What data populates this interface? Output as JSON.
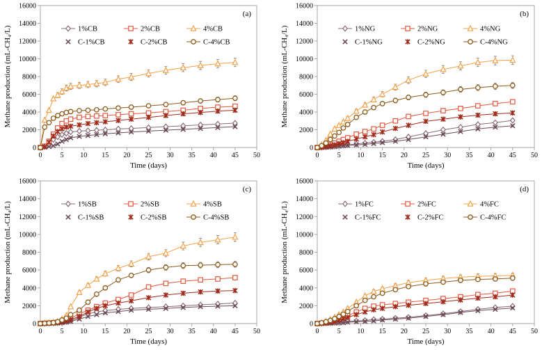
{
  "figure": {
    "x_ticks": [
      "0",
      "5",
      "10",
      "15",
      "20",
      "25",
      "30",
      "35",
      "40",
      "45",
      "50"
    ],
    "y_ticks": [
      "0",
      "2000",
      "4000",
      "6000",
      "8000",
      "10000",
      "12000",
      "14000",
      "16000"
    ]
  },
  "colors": {
    "c1": "#8a6a78",
    "c2": "#e4553a",
    "c4": "#f4a048",
    "cc1": "#6b4a55",
    "cc2": "#a0291a",
    "cc4": "#8a5a1a",
    "frame": "#a6a6a6"
  },
  "series_styles": [
    {
      "marker": "diamond-open",
      "color": "c1"
    },
    {
      "marker": "square-open",
      "color": "c2"
    },
    {
      "marker": "triangle-open",
      "color": "c4"
    },
    {
      "marker": "x",
      "color": "cc1"
    },
    {
      "marker": "star",
      "color": "cc2"
    },
    {
      "marker": "circle-open",
      "color": "cc4"
    }
  ],
  "chart_data": [
    {
      "type": "line",
      "panel_label": "(a)",
      "xlabel": "Time (days)",
      "ylabel": "Methane production (mL-CH₄/L)",
      "xlim": [
        0,
        50
      ],
      "ylim": [
        0,
        16000
      ],
      "legend": "top",
      "x": [
        0,
        1,
        2,
        3,
        4,
        5,
        6,
        7,
        9,
        11,
        13,
        15,
        18,
        21,
        25,
        29,
        33,
        37,
        41,
        45
      ],
      "series": [
        {
          "name": "1%CB",
          "values": [
            0,
            100,
            400,
            900,
            1200,
            1450,
            1600,
            1750,
            1850,
            1900,
            1950,
            2000,
            2100,
            2150,
            2250,
            2350,
            2450,
            2550,
            2650,
            2750
          ]
        },
        {
          "name": "2%CB",
          "values": [
            0,
            150,
            700,
            1500,
            2200,
            2700,
            3000,
            3200,
            3400,
            3500,
            3550,
            3600,
            3700,
            3800,
            3900,
            4050,
            4200,
            4400,
            4550,
            4650
          ]
        },
        {
          "name": "4%CB",
          "values": [
            0,
            3100,
            4200,
            5500,
            5900,
            6300,
            6700,
            6900,
            7000,
            7100,
            7200,
            7350,
            7700,
            7950,
            8350,
            8700,
            9000,
            9250,
            9450,
            9600
          ]
        },
        {
          "name": "C-1%CB",
          "values": [
            0,
            50,
            100,
            200,
            400,
            700,
            900,
            1100,
            1250,
            1350,
            1450,
            1550,
            1650,
            1750,
            1850,
            1950,
            2050,
            2150,
            2250,
            2350
          ]
        },
        {
          "name": "C-2%CB",
          "values": [
            0,
            100,
            600,
            1300,
            1800,
            2100,
            2300,
            2400,
            2550,
            2700,
            2800,
            2900,
            3050,
            3200,
            3400,
            3600,
            3800,
            3950,
            4100,
            4200
          ]
        },
        {
          "name": "C-4%CB",
          "values": [
            0,
            2300,
            2800,
            3300,
            3600,
            3800,
            3950,
            4050,
            4150,
            4200,
            4250,
            4350,
            4450,
            4550,
            4700,
            4850,
            5050,
            5250,
            5400,
            5550
          ]
        }
      ]
    },
    {
      "type": "line",
      "panel_label": "(b)",
      "xlabel": "Time (days)",
      "ylabel": "Methane production (mL-CH₄/L)",
      "xlim": [
        0,
        50
      ],
      "ylim": [
        0,
        16000
      ],
      "legend": "top",
      "x": [
        0,
        1,
        2,
        3,
        4,
        5,
        6,
        7,
        9,
        11,
        13,
        15,
        18,
        21,
        25,
        29,
        33,
        37,
        41,
        45
      ],
      "series": [
        {
          "name": "1%NG",
          "values": [
            0,
            20,
            50,
            100,
            150,
            200,
            250,
            300,
            400,
            500,
            600,
            700,
            900,
            1200,
            1600,
            2000,
            2300,
            2600,
            2800,
            3050
          ]
        },
        {
          "name": "2%NG",
          "values": [
            0,
            50,
            150,
            300,
            500,
            700,
            900,
            1100,
            1500,
            1800,
            2100,
            2500,
            3000,
            3500,
            3850,
            4150,
            4400,
            4700,
            4950,
            5150
          ]
        },
        {
          "name": "4%NG",
          "values": [
            0,
            300,
            800,
            1500,
            2100,
            2500,
            2900,
            3300,
            4100,
            4800,
            5400,
            6000,
            6800,
            7600,
            8300,
            8800,
            9200,
            9600,
            9800,
            9850
          ]
        },
        {
          "name": "C-1%NG",
          "values": [
            0,
            10,
            30,
            60,
            100,
            150,
            200,
            250,
            300,
            350,
            450,
            550,
            700,
            900,
            1200,
            1500,
            1800,
            2100,
            2300,
            2450
          ]
        },
        {
          "name": "C-2%NG",
          "values": [
            0,
            30,
            100,
            200,
            300,
            450,
            550,
            700,
            950,
            1200,
            1450,
            1750,
            2150,
            2500,
            2950,
            3200,
            3450,
            3650,
            3800,
            3900
          ]
        },
        {
          "name": "C-4%NG",
          "values": [
            0,
            200,
            500,
            900,
            1300,
            1700,
            2200,
            2600,
            3400,
            4000,
            4500,
            4950,
            5300,
            5650,
            5950,
            6200,
            6550,
            6750,
            6900,
            7000
          ]
        }
      ]
    },
    {
      "type": "line",
      "panel_label": "(c)",
      "xlabel": "Time (days)",
      "ylabel": "Methane production (mL-CH₄/L)",
      "xlim": [
        0,
        50
      ],
      "ylim": [
        0,
        16000
      ],
      "legend": "top",
      "x": [
        0,
        1,
        2,
        3,
        4,
        5,
        6,
        7,
        9,
        11,
        13,
        15,
        18,
        21,
        25,
        29,
        33,
        37,
        41,
        45
      ],
      "series": [
        {
          "name": "1%SB",
          "values": [
            0,
            20,
            40,
            60,
            80,
            120,
            200,
            300,
            700,
            1100,
            1300,
            1450,
            1600,
            1700,
            1800,
            1900,
            2000,
            2100,
            2200,
            2300
          ]
        },
        {
          "name": "2%SB",
          "values": [
            0,
            30,
            60,
            100,
            150,
            250,
            400,
            600,
            1100,
            1500,
            1900,
            2300,
            2700,
            3200,
            4100,
            4500,
            4750,
            4900,
            5000,
            5150
          ]
        },
        {
          "name": "4%SB",
          "values": [
            0,
            50,
            100,
            150,
            250,
            500,
            900,
            1900,
            3500,
            4300,
            5000,
            5600,
            6200,
            6700,
            7500,
            7900,
            8700,
            9100,
            9400,
            9700
          ]
        },
        {
          "name": "C-1%SB",
          "values": [
            0,
            10,
            20,
            40,
            60,
            100,
            150,
            250,
            500,
            800,
            1000,
            1200,
            1350,
            1500,
            1600,
            1700,
            1800,
            1900,
            1950,
            2000
          ]
        },
        {
          "name": "C-2%SB",
          "values": [
            0,
            20,
            40,
            70,
            120,
            200,
            300,
            450,
            800,
            1300,
            1700,
            2000,
            2300,
            2550,
            2900,
            3200,
            3400,
            3550,
            3650,
            3700
          ]
        },
        {
          "name": "C-4%SB",
          "values": [
            0,
            30,
            60,
            100,
            200,
            400,
            600,
            1000,
            1500,
            2400,
            3300,
            4000,
            4900,
            5400,
            6000,
            6300,
            6500,
            6550,
            6600,
            6650
          ]
        }
      ]
    },
    {
      "type": "line",
      "panel_label": "(d)",
      "xlabel": "Time (days)",
      "ylabel": "Methane production (mL-CH₄/L)",
      "xlim": [
        0,
        50
      ],
      "ylim": [
        0,
        16000
      ],
      "legend": "top",
      "x": [
        0,
        1,
        2,
        3,
        4,
        5,
        6,
        7,
        9,
        11,
        13,
        15,
        18,
        21,
        25,
        29,
        33,
        37,
        41,
        45
      ],
      "series": [
        {
          "name": "1%FC",
          "values": [
            0,
            20,
            50,
            80,
            120,
            150,
            200,
            250,
            300,
            350,
            450,
            500,
            600,
            700,
            900,
            1100,
            1350,
            1600,
            1800,
            1950
          ]
        },
        {
          "name": "2%FC",
          "values": [
            0,
            50,
            100,
            200,
            350,
            500,
            700,
            900,
            1300,
            1700,
            1950,
            2100,
            2250,
            2400,
            2600,
            2800,
            3000,
            3250,
            3400,
            3650
          ]
        },
        {
          "name": "4%FC",
          "values": [
            0,
            100,
            250,
            450,
            700,
            1000,
            1300,
            1700,
            2400,
            3100,
            3600,
            3900,
            4250,
            4600,
            4850,
            5050,
            5200,
            5300,
            5350,
            5400
          ]
        },
        {
          "name": "C-1%FC",
          "values": [
            0,
            10,
            20,
            40,
            60,
            80,
            100,
            150,
            200,
            250,
            300,
            400,
            500,
            600,
            800,
            1000,
            1250,
            1450,
            1600,
            1750
          ]
        },
        {
          "name": "C-2%FC",
          "values": [
            0,
            30,
            70,
            150,
            250,
            400,
            550,
            700,
            1000,
            1300,
            1550,
            1700,
            1900,
            2050,
            2250,
            2450,
            2650,
            2850,
            3000,
            3200
          ]
        },
        {
          "name": "C-4%FC",
          "values": [
            0,
            80,
            200,
            350,
            550,
            800,
            1050,
            1350,
            2000,
            2600,
            3000,
            3400,
            3800,
            4150,
            4450,
            4650,
            4850,
            4950,
            5000,
            5100
          ]
        }
      ]
    }
  ]
}
